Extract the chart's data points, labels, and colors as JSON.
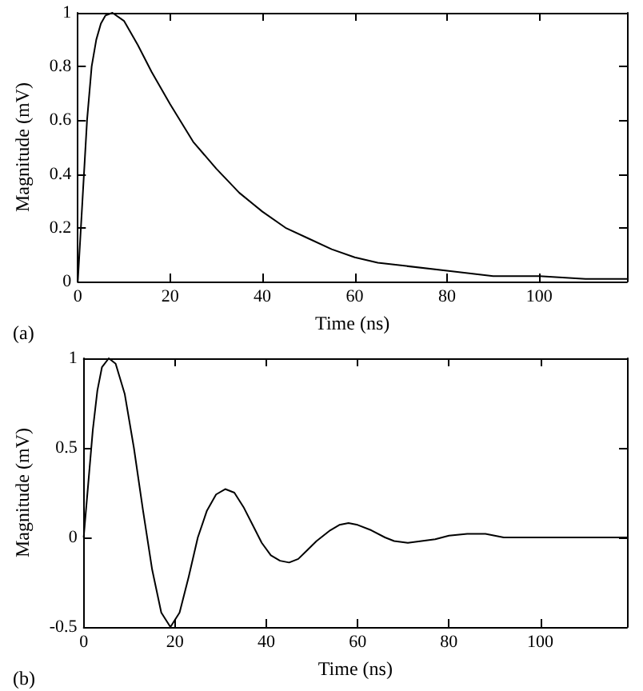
{
  "chart_data": [
    {
      "type": "line",
      "xlabel": "Time (ns)",
      "ylabel": "Magnitude (mV)",
      "annotations": [
        "(a)"
      ],
      "x": [
        0,
        1,
        2,
        3,
        4,
        5,
        6,
        7.5,
        10,
        13,
        16,
        20,
        25,
        30,
        35,
        40,
        45,
        50,
        55,
        60,
        65,
        70,
        80,
        90,
        100,
        110,
        119
      ],
      "series": [
        {
          "color": "#000000",
          "values": [
            0,
            0.3,
            0.6,
            0.8,
            0.9,
            0.96,
            0.99,
            1,
            0.97,
            0.88,
            0.78,
            0.66,
            0.52,
            0.42,
            0.33,
            0.26,
            0.2,
            0.16,
            0.12,
            0.09,
            0.07,
            0.06,
            0.04,
            0.02,
            0.02,
            0.01,
            0.01
          ]
        }
      ],
      "xlim": [
        0,
        119
      ],
      "xticks": [
        0,
        20,
        40,
        60,
        80,
        100
      ],
      "ylim": [
        0,
        1
      ],
      "yticks": [
        0,
        0.2,
        0.4,
        0.6,
        0.8,
        1
      ],
      "grid": false,
      "marker": "none",
      "line_style": "solid"
    },
    {
      "type": "line",
      "xlabel": "Time (ns)",
      "ylabel": "Magnitude (mV)",
      "annotations": [
        "(b)"
      ],
      "x": [
        0,
        1,
        2,
        3,
        4,
        5.5,
        7,
        9,
        11,
        13,
        15,
        17,
        19,
        21,
        23,
        25,
        27,
        29,
        31,
        33,
        35,
        37,
        39,
        41,
        43,
        45,
        47,
        49,
        51,
        54,
        56,
        58,
        60,
        63,
        66,
        68,
        71,
        74,
        77,
        80,
        84,
        88,
        92,
        96,
        100,
        105,
        110,
        119
      ],
      "series": [
        {
          "color": "#000000",
          "values": [
            0,
            0.3,
            0.6,
            0.82,
            0.95,
            1,
            0.97,
            0.8,
            0.5,
            0.15,
            -0.18,
            -0.42,
            -0.5,
            -0.42,
            -0.22,
            0,
            0.15,
            0.24,
            0.27,
            0.25,
            0.17,
            0.07,
            -0.03,
            -0.1,
            -0.13,
            -0.14,
            -0.12,
            -0.07,
            -0.02,
            0.04,
            0.07,
            0.08,
            0.07,
            0.04,
            0,
            -0.02,
            -0.03,
            -0.02,
            -0.01,
            0.01,
            0.02,
            0.02,
            0,
            0,
            0,
            0,
            0,
            0
          ]
        }
      ],
      "xlim": [
        0,
        119
      ],
      "xticks": [
        0,
        20,
        40,
        60,
        80,
        100
      ],
      "ylim": [
        -0.5,
        1
      ],
      "yticks": [
        -0.5,
        0,
        0.5,
        1
      ],
      "grid": false,
      "marker": "none",
      "line_style": "solid"
    }
  ]
}
